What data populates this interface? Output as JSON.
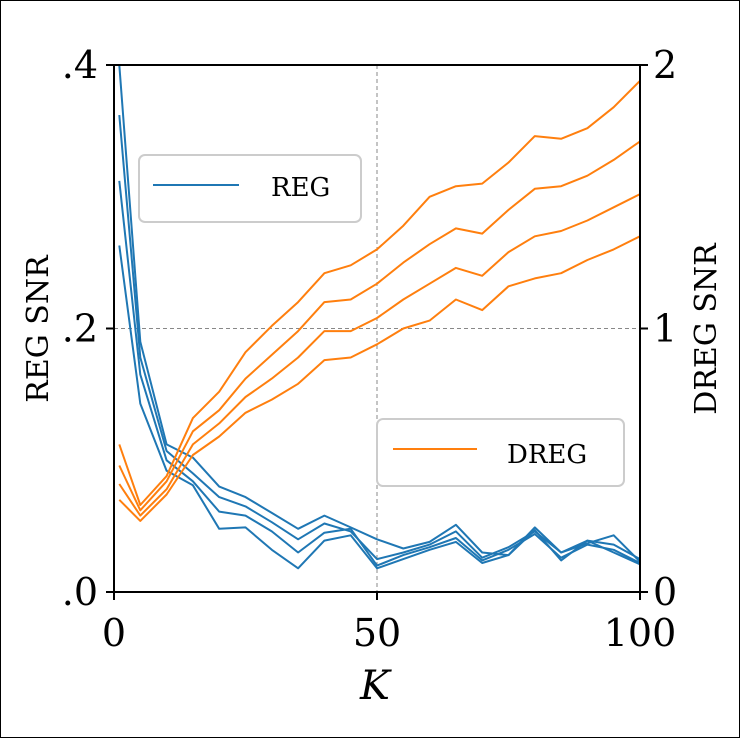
{
  "chart_data": {
    "type": "line",
    "xlabel": "K",
    "ylabel_left": "REG SNR",
    "ylabel_right": "DREG SNR",
    "xlim": [
      0,
      100
    ],
    "ylim_left": [
      0,
      0.4
    ],
    "ylim_right": [
      0,
      2
    ],
    "x_ticks": [
      "0",
      "50",
      "100"
    ],
    "y_left_ticks": [
      ".0",
      ".2",
      ".4"
    ],
    "y_right_ticks": [
      "0",
      "1",
      "2"
    ],
    "grid": "dashed at x=50 and y=.2",
    "legends": [
      {
        "label": "REG",
        "color": "#1f77b4",
        "placement": "upper-left"
      },
      {
        "label": "DREG",
        "color": "#ff7f0e",
        "placement": "lower-right"
      }
    ],
    "x": [
      1,
      5,
      10,
      15,
      20,
      25,
      30,
      35,
      40,
      45,
      50,
      55,
      60,
      65,
      70,
      75,
      80,
      85,
      90,
      95,
      100
    ],
    "series": [
      {
        "group": "REG",
        "axis": "left",
        "color": "#1f77b4",
        "values": [
          0.4,
          0.19,
          0.112,
          0.102,
          0.08,
          0.072,
          0.06,
          0.048,
          0.058,
          0.049,
          0.04,
          0.033,
          0.038,
          0.051,
          0.03,
          0.028,
          0.049,
          0.03,
          0.037,
          0.043,
          0.023
        ]
      },
      {
        "group": "REG",
        "axis": "left",
        "color": "#1f77b4",
        "values": [
          0.362,
          0.178,
          0.107,
          0.09,
          0.072,
          0.065,
          0.053,
          0.04,
          0.052,
          0.046,
          0.025,
          0.03,
          0.036,
          0.046,
          0.026,
          0.034,
          0.046,
          0.03,
          0.039,
          0.036,
          0.025
        ]
      },
      {
        "group": "REG",
        "axis": "left",
        "color": "#1f77b4",
        "values": [
          0.312,
          0.165,
          0.1,
          0.084,
          0.061,
          0.058,
          0.046,
          0.03,
          0.045,
          0.048,
          0.02,
          0.028,
          0.034,
          0.041,
          0.024,
          0.032,
          0.044,
          0.026,
          0.036,
          0.032,
          0.022
        ]
      },
      {
        "group": "REG",
        "axis": "left",
        "color": "#1f77b4",
        "values": [
          0.263,
          0.143,
          0.092,
          0.081,
          0.048,
          0.049,
          0.032,
          0.018,
          0.039,
          0.043,
          0.018,
          0.025,
          0.032,
          0.038,
          0.022,
          0.028,
          0.047,
          0.024,
          0.039,
          0.03,
          0.021
        ]
      },
      {
        "group": "DREG",
        "axis": "right",
        "color": "#ff7f0e",
        "values": [
          0.56,
          0.33,
          0.44,
          0.66,
          0.76,
          0.91,
          1.01,
          1.1,
          1.21,
          1.24,
          1.3,
          1.39,
          1.5,
          1.54,
          1.55,
          1.63,
          1.73,
          1.72,
          1.76,
          1.84,
          1.94
        ]
      },
      {
        "group": "DREG",
        "axis": "right",
        "color": "#ff7f0e",
        "values": [
          0.48,
          0.31,
          0.42,
          0.61,
          0.69,
          0.81,
          0.9,
          0.99,
          1.1,
          1.11,
          1.17,
          1.25,
          1.32,
          1.38,
          1.36,
          1.45,
          1.53,
          1.54,
          1.58,
          1.64,
          1.71
        ]
      },
      {
        "group": "DREG",
        "axis": "right",
        "color": "#ff7f0e",
        "values": [
          0.41,
          0.29,
          0.39,
          0.56,
          0.64,
          0.74,
          0.81,
          0.89,
          0.99,
          0.99,
          1.04,
          1.11,
          1.17,
          1.23,
          1.2,
          1.29,
          1.35,
          1.37,
          1.41,
          1.46,
          1.51
        ]
      },
      {
        "group": "DREG",
        "axis": "right",
        "color": "#ff7f0e",
        "values": [
          0.35,
          0.27,
          0.37,
          0.52,
          0.59,
          0.68,
          0.73,
          0.79,
          0.88,
          0.89,
          0.94,
          1.0,
          1.03,
          1.11,
          1.07,
          1.16,
          1.19,
          1.21,
          1.26,
          1.3,
          1.35
        ]
      }
    ]
  }
}
